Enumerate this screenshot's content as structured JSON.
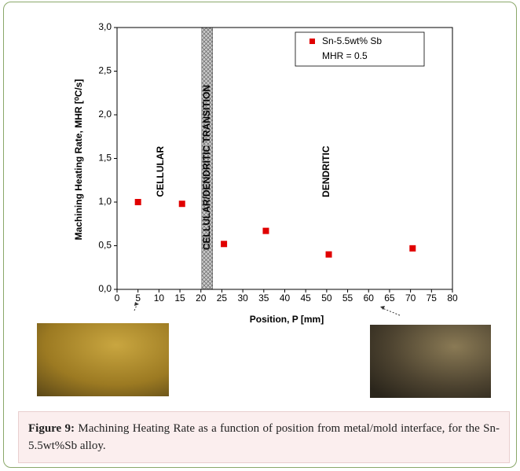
{
  "chart_data": {
    "type": "scatter",
    "y_label": "Machining Heating Rate, MHR  [⁰C/s]",
    "x_label": "Position, P  [mm]",
    "x": [
      5,
      15.5,
      25.5,
      35.5,
      50.5,
      70.5
    ],
    "series": [
      {
        "name": "Sn-5.5wt% Sb",
        "color": "#e00000",
        "values": [
          1.0,
          0.98,
          0.52,
          0.67,
          0.4,
          0.47
        ]
      }
    ],
    "legend_note": "MHR = 0.5",
    "legend": "top-right",
    "xlim": [
      0,
      80
    ],
    "xticks": [
      0,
      5,
      10,
      15,
      20,
      25,
      30,
      35,
      40,
      45,
      50,
      55,
      60,
      65,
      70,
      75,
      80
    ],
    "ylim": [
      0,
      3
    ],
    "yticks": [
      {
        "value": 0,
        "label": "0,0"
      },
      {
        "value": 0.5,
        "label": "0,5"
      },
      {
        "value": 1,
        "label": "1,0"
      },
      {
        "value": 1.5,
        "label": "1,5"
      },
      {
        "value": 2,
        "label": "2,0"
      },
      {
        "value": 2.5,
        "label": "2,5"
      },
      {
        "value": 3,
        "label": "3,0"
      }
    ],
    "band": {
      "x0": 20.2,
      "x1": 22.8,
      "label": "CELLULAR/DENDRITIC TRANSITION"
    },
    "annotations": [
      {
        "text": "CELLULAR",
        "x": 10.5,
        "y": 1.35
      },
      {
        "text": "DENDRITIC",
        "x": 50,
        "y": 1.35
      }
    ]
  },
  "caption": {
    "label": "Figure 9:",
    "text": " Machining Heating Rate as a function of position from metal/mold interface, for the Sn-5.5wt%Sb alloy."
  }
}
